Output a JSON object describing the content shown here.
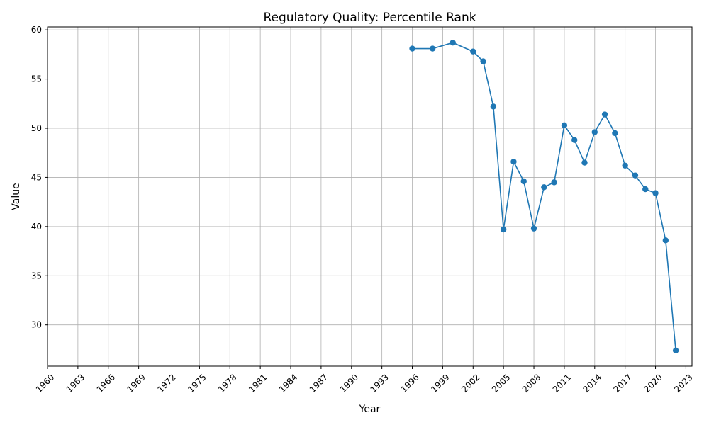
{
  "chart_data": {
    "type": "line",
    "title": "Regulatory Quality: Percentile Rank",
    "xlabel": "Year",
    "ylabel": "Value",
    "xlim": [
      1960,
      2023.6
    ],
    "ylim": [
      25.8,
      60.3
    ],
    "xticks": [
      1960,
      1963,
      1966,
      1969,
      1972,
      1975,
      1978,
      1981,
      1984,
      1987,
      1990,
      1993,
      1996,
      1999,
      2002,
      2005,
      2008,
      2011,
      2014,
      2017,
      2020,
      2023
    ],
    "yticks": [
      30,
      35,
      40,
      45,
      50,
      55,
      60
    ],
    "grid": true,
    "color": "#1f77b4",
    "series": [
      {
        "x": [
          1996,
          1998,
          2000,
          2002,
          2003,
          2004,
          2005,
          2006,
          2007,
          2008,
          2009,
          2010,
          2011,
          2012,
          2013,
          2014,
          2015,
          2016,
          2017,
          2018,
          2019,
          2020,
          2021,
          2022
        ],
        "values": [
          58.1,
          58.1,
          58.7,
          57.8,
          56.8,
          52.2,
          39.7,
          46.6,
          44.6,
          39.8,
          44.0,
          44.5,
          50.3,
          48.8,
          46.5,
          49.6,
          51.4,
          49.5,
          46.2,
          45.2,
          43.8,
          43.4,
          38.6,
          27.4
        ]
      }
    ]
  }
}
